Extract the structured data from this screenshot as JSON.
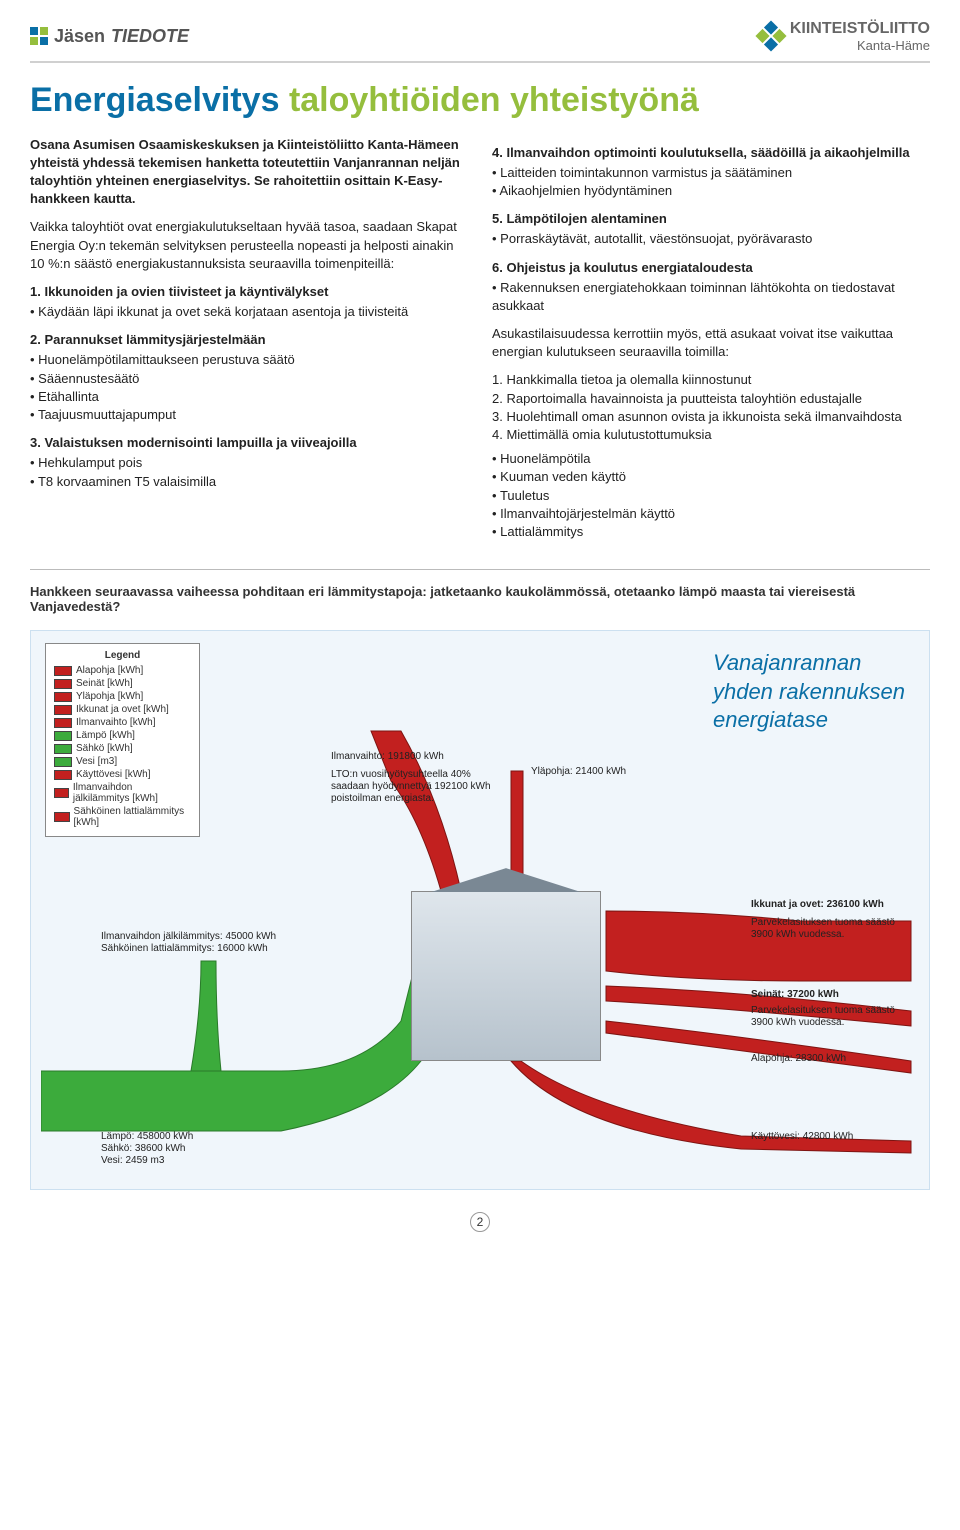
{
  "header": {
    "brand_first": "Jäsen",
    "brand_second": "TIEDOTE",
    "org_name": "KIINTEISTÖLIITTO",
    "org_sub": "Kanta-Häme"
  },
  "title": {
    "part1": "Energiaselvitys",
    "part2": "taloyhtiöiden yhteistyönä"
  },
  "left": {
    "intro": "Osana Asumisen Osaamiskeskuksen ja Kiinteistöliitto Kanta-Hämeen yhteistä yhdessä tekemisen hanketta toteutettiin Vanjanrannan neljän taloyhtiön yhteinen energiaselvitys. Se rahoitettiin osittain K-Easy-hankkeen kautta.",
    "body": "Vaikka taloyhtiöt ovat energiakulutukseltaan hyvää tasoa, saadaan Skapat Energia Oy:n tekemän selvityksen perusteella nopeasti ja helposti ainakin 10 %:n säästö energiakustannuksista seuraavilla toimenpiteillä:",
    "s1_title": "1. Ikkunoiden ja ovien tiivisteet ja käyntivälykset",
    "s1_items": [
      "Käydään läpi ikkunat ja ovet sekä korjataan asentoja ja tiivisteitä"
    ],
    "s2_title": "2. Parannukset lämmitysjärjestelmään",
    "s2_items": [
      "Huonelämpötilamittaukseen perustuva säätö",
      "Sääennustesäätö",
      "Etähallinta",
      "Taajuusmuuttajapumput"
    ],
    "s3_title": "3. Valaistuksen modernisointi lampuilla ja viiveajoilla",
    "s3_items": [
      "Hehkulamput pois",
      "T8 korvaaminen T5 valaisimilla"
    ]
  },
  "right": {
    "s4_title": "4. Ilmanvaihdon optimointi koulutuksella, säädöillä ja aikaohjelmilla",
    "s4_items": [
      "Laitteiden toimintakunnon varmistus ja säätäminen",
      "Aikaohjelmien hyödyntäminen"
    ],
    "s5_title": "5. Lämpötilojen alentaminen",
    "s5_items": [
      "Porraskäytävät, autotallit, väestönsuojat, pyörävarasto"
    ],
    "s6_title": "6. Ohjeistus ja koulutus energiataloudesta",
    "s6_items": [
      "Rakennuksen energiatehokkaan toiminnan lähtökohta on tiedostavat asukkaat"
    ],
    "para": "Asukastilaisuudessa kerrottiin myös, että asukaat voivat itse vaikuttaa energian kulutukseen seuraavilla toimilla:",
    "ol": [
      "1. Hankkimalla tietoa ja olemalla kiinnostunut",
      "2. Raportoimalla havainnoista ja puutteista taloyhtiön edustajalle",
      "3. Huolehtimall oman asunnon ovista ja ikkunoista sekä ilmanvaihdosta",
      "4. Miettimällä omia kulutustottumuksia"
    ],
    "ul2": [
      "Huonelämpötila",
      "Kuuman veden käyttö",
      "Tuuletus",
      "Ilmanvaihtojärjestelmän käyttö",
      "Lattialämmitys"
    ]
  },
  "next_phase": "Hankkeen seuraavassa vaiheessa pohditaan eri lämmitystapoja: jatketaanko kaukolämmössä, otetaanko lämpö maasta tai viereisestä Vanjavedestä?",
  "diagram": {
    "title_l1": "Vanajanrannan",
    "title_l2": "yhden rakennuksen",
    "title_l3": "energiatase",
    "legend_title": "Legend",
    "legend": [
      {
        "label": "Alapohja [kWh]",
        "color": "#c2201f"
      },
      {
        "label": "Seinät [kWh]",
        "color": "#c2201f"
      },
      {
        "label": "Yläpohja [kWh]",
        "color": "#c2201f"
      },
      {
        "label": "Ikkunat ja ovet [kWh]",
        "color": "#c2201f"
      },
      {
        "label": "Ilmanvaihto [kWh]",
        "color": "#c2201f"
      },
      {
        "label": "Lämpö [kWh]",
        "color": "#3cab3c"
      },
      {
        "label": "Sähkö [kWh]",
        "color": "#3cab3c"
      },
      {
        "label": "Vesi [m3]",
        "color": "#3cab3c"
      },
      {
        "label": "Käyttövesi [kWh]",
        "color": "#c2201f"
      },
      {
        "label": "Ilmanvaihdon jälkilämmitys [kWh]",
        "color": "#c2201f"
      },
      {
        "label": "Sähköinen lattialämmitys [kWh]",
        "color": "#c2201f"
      }
    ],
    "labels": {
      "ilmanvaihto": "Ilmanvaihto: 191800 kWh",
      "lto": "LTO:n vuosihyötysuhteella 40% saadaan hyödynnettyä 192100 kWh poistoilman energiasta.",
      "ylapohja": "Yläpohja: 21400 kWh",
      "jalkilammitys": "Ilmanvaihdon jälkilämmitys: 45000 kWh\nSähköinen lattialämmitys: 16000 kWh",
      "ikkunat": "Ikkunat ja ovet: 236100 kWh",
      "parveke1": "Parvekelasituksen tuoma säästö 3900 kWh vuodessa.",
      "seinat": "Seinät: 37200 kWh",
      "parveke2": "Parvekelasituksen tuoma säästö 3900 kWh vuodessa.",
      "alapohja": "Alapohja: 28300 kWh",
      "lampo": "Lämpö: 458000 kWh\nSähkö: 38600 kWh\nVesi: 2459 m3",
      "kayttovesi": "Käyttövesi: 42800 kWh"
    },
    "colors": {
      "in": "#3cab3c",
      "out": "#c2201f",
      "bg": "#f0f6fb",
      "border": "#cce0f0"
    }
  },
  "page_number": "2"
}
